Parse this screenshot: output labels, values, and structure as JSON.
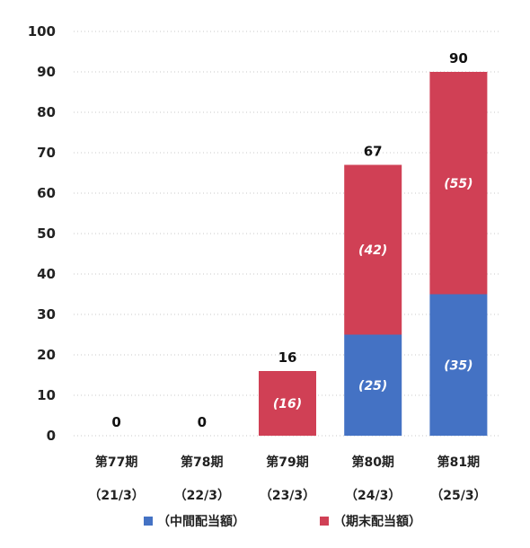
{
  "chart_data": {
    "type": "bar",
    "stacked": true,
    "categories": [
      "第77期",
      "第78期",
      "第79期",
      "第80期",
      "第81期"
    ],
    "sub_categories": [
      "（21/3）",
      "（22/3）",
      "（23/3）",
      "（24/3）",
      "（25/3）"
    ],
    "series": [
      {
        "name": "（中間配当額）",
        "values": [
          0,
          0,
          0,
          25,
          35
        ],
        "color": "#4472c4"
      },
      {
        "name": "（期末配当額）",
        "values": [
          0,
          0,
          16,
          42,
          55
        ],
        "color": "#d04055"
      }
    ],
    "segment_labels": [
      [
        null,
        null,
        null,
        "(25)",
        "(35)"
      ],
      [
        null,
        null,
        "(16)",
        "(42)",
        "(55)"
      ]
    ],
    "totals": [
      "0",
      "0",
      "16",
      "67",
      "90"
    ],
    "ylim": [
      0,
      100
    ],
    "yticks": [
      0,
      10,
      20,
      30,
      40,
      50,
      60,
      70,
      80,
      90,
      100
    ],
    "grid": true,
    "legend": "bottom"
  }
}
